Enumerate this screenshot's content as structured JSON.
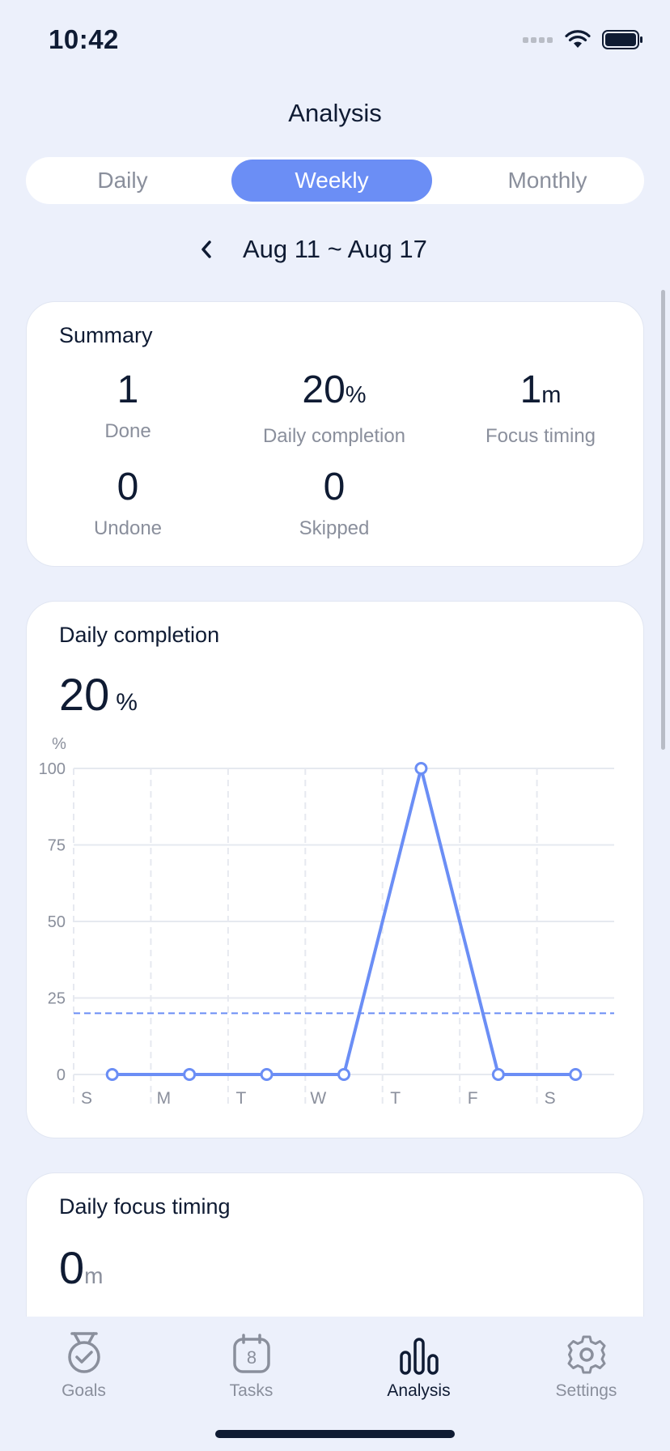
{
  "status_bar": {
    "time": "10:42"
  },
  "header": {
    "title": "Analysis"
  },
  "segmented": {
    "options": [
      "Daily",
      "Weekly",
      "Monthly"
    ],
    "selected": "Weekly"
  },
  "date_range": {
    "label": "Aug 11 ~ Aug 17"
  },
  "summary": {
    "title": "Summary",
    "done": {
      "value": "1",
      "label": "Done"
    },
    "daily_completion": {
      "value": "20",
      "unit": "%",
      "label": "Daily completion"
    },
    "focus_timing": {
      "value": "1",
      "unit": "m",
      "label": "Focus timing"
    },
    "undone": {
      "value": "0",
      "label": "Undone"
    },
    "skipped": {
      "value": "0",
      "label": "Skipped"
    }
  },
  "completion_card": {
    "title": "Daily completion",
    "value": "20",
    "unit": "%"
  },
  "chart_data": {
    "type": "line",
    "categories": [
      "S",
      "M",
      "T",
      "W",
      "T",
      "F",
      "S"
    ],
    "series": [
      {
        "values": [
          0,
          0,
          0,
          0,
          100,
          0,
          0
        ]
      }
    ],
    "average_line": 20,
    "ylabel": "%",
    "yticks": [
      0,
      25,
      50,
      75,
      100
    ],
    "ylim": [
      0,
      100
    ],
    "grid": true,
    "colors": {
      "line": "#6B8EF5",
      "grid": "#E6E9F0",
      "axis_text": "#8A8F9C"
    }
  },
  "focus_card": {
    "title": "Daily focus timing",
    "value": "0",
    "unit": "m"
  },
  "tab_bar": {
    "tabs": [
      {
        "label": "Goals",
        "icon": "medal-icon"
      },
      {
        "label": "Tasks",
        "icon": "calendar-icon",
        "badge": "8"
      },
      {
        "label": "Analysis",
        "icon": "bar-chart-icon"
      },
      {
        "label": "Settings",
        "icon": "gear-icon"
      }
    ],
    "active": "Analysis"
  }
}
